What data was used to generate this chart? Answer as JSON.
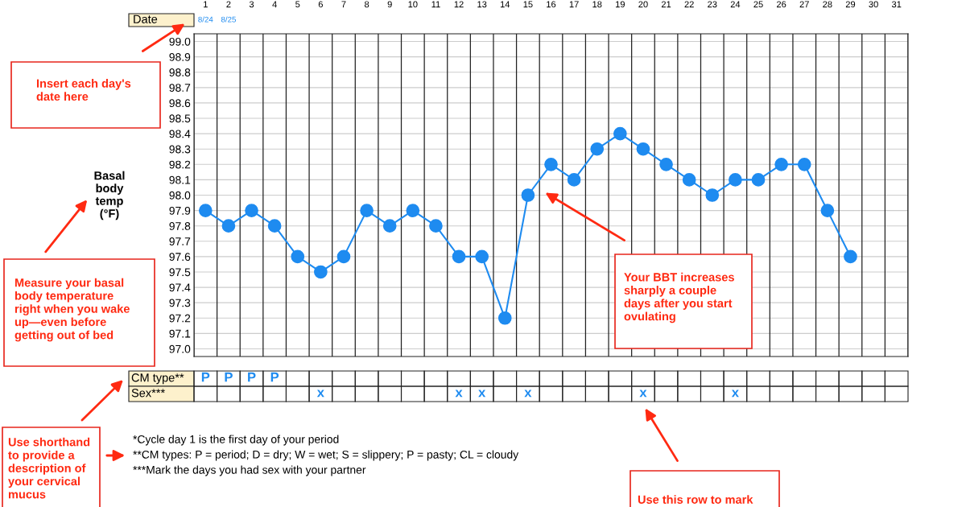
{
  "chart_data": {
    "type": "line",
    "ylabel": "Basal\nbody\ntemp\n(°F)",
    "categories": [
      "1",
      "2",
      "3",
      "4",
      "5",
      "6",
      "7",
      "8",
      "9",
      "10",
      "11",
      "12",
      "13",
      "14",
      "15",
      "16",
      "17",
      "18",
      "19",
      "20",
      "21",
      "22",
      "23",
      "24",
      "25",
      "26",
      "27",
      "28",
      "29",
      "30",
      "31"
    ],
    "series": [
      {
        "color": "#1e8bf0",
        "values": [
          97.9,
          97.8,
          97.9,
          97.8,
          97.6,
          97.5,
          97.6,
          97.9,
          97.8,
          97.9,
          97.8,
          97.6,
          97.6,
          97.2,
          98.0,
          98.2,
          98.1,
          98.3,
          98.4,
          98.3,
          98.2,
          98.1,
          98.0,
          98.1,
          98.1,
          98.2,
          98.2,
          97.9,
          97.6,
          null,
          null
        ]
      }
    ],
    "ylim": [
      96.95,
      99.05
    ],
    "yticks": [
      {
        "value": 97,
        "label": "97.0"
      },
      97.1,
      97.2,
      97.3,
      97.4,
      97.5,
      97.6,
      97.7,
      97.8,
      97.9,
      {
        "value": 98,
        "label": "98.0"
      },
      98.1,
      98.2,
      98.3,
      98.4,
      98.5,
      98.6,
      98.7,
      98.8,
      98.9,
      {
        "value": 99,
        "label": "99.0"
      }
    ],
    "grid": true,
    "marker": "circle",
    "line_style": "solid",
    "annotations": [
      "Date",
      "8/24",
      "8/25",
      "CM type**",
      "Sex***",
      "P",
      "P",
      "P",
      "P",
      "x",
      "x",
      "x",
      "x",
      "x",
      "x",
      "*Cycle day 1 is the first day of your period",
      "**CM types: P = period; D = dry; W = wet; S = slippery; P = pasty; CL = cloudy",
      "***Mark the days you had sex with your partner",
      "Insert each day's\ndate here",
      "Measure your basal\nbody temperature\nright when you wake\nup—even before\ngetting out of bed",
      "Your BBT increases\nsharply a couple\ndays after you start\novulating",
      "Use shorthand\nto provide a\ndescription of\nyour cervical\nmucus",
      "Use this row to mark"
    ]
  }
}
